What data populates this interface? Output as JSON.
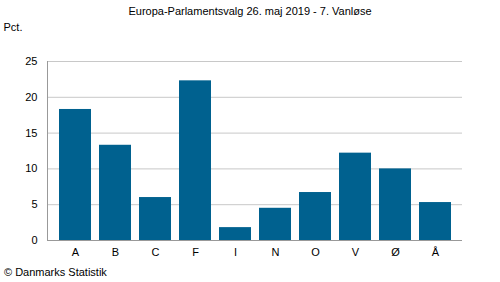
{
  "chart_data": {
    "type": "bar",
    "title": "Europa-Parlamentsvalg 26. maj 2019 - 7. Vanløse",
    "y_label": "Pct.",
    "caption": "© Danmarks Statistik",
    "categories": [
      "A",
      "B",
      "C",
      "F",
      "I",
      "N",
      "O",
      "V",
      "Ø",
      "Å"
    ],
    "values": [
      18.3,
      13.3,
      6.0,
      22.3,
      1.8,
      4.5,
      6.7,
      12.2,
      10.0,
      5.3
    ],
    "color": "#00618f",
    "ylim": [
      0,
      25
    ],
    "yticks": [
      0,
      5,
      10,
      15,
      20,
      25
    ],
    "grid": true
  }
}
